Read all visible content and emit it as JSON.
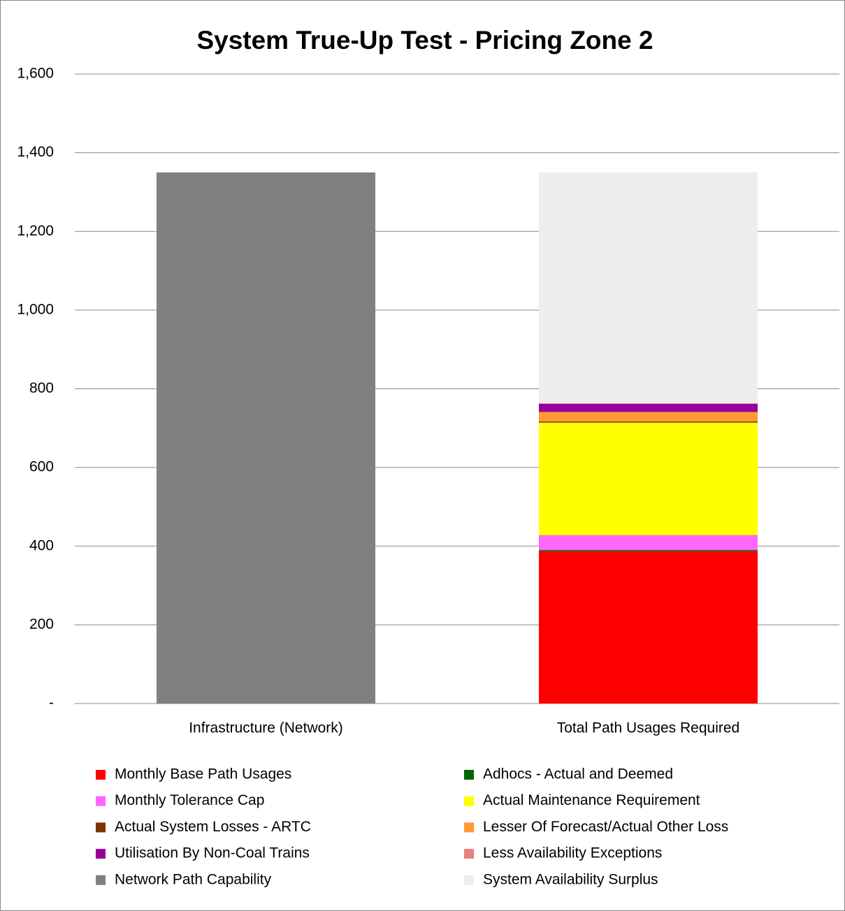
{
  "chart_data": {
    "type": "stacked_bar",
    "title": "System True-Up Test - Pricing Zone 2",
    "categories": [
      "Infrastructure (Network)",
      "Total Path Usages Required"
    ],
    "series": [
      {
        "name": "Monthly Base Path Usages",
        "color": "#ff0000",
        "values": [
          null,
          387
        ]
      },
      {
        "name": "Adhocs - Actual and Deemed",
        "color": "#006600",
        "values": [
          null,
          3
        ]
      },
      {
        "name": "Monthly Tolerance Cap",
        "color": "#ff66ff",
        "values": [
          null,
          38
        ]
      },
      {
        "name": "Actual Maintenance Requirement",
        "color": "#ffff00",
        "values": [
          null,
          286
        ]
      },
      {
        "name": "Actual System Losses - ARTC",
        "color": "#7f3300",
        "values": [
          null,
          3
        ]
      },
      {
        "name": "Lesser Of Forecast/Actual Other Loss",
        "color": "#ff9933",
        "values": [
          null,
          24
        ]
      },
      {
        "name": "Utilisation By Non-Coal Trains",
        "color": "#990099",
        "values": [
          null,
          21
        ]
      },
      {
        "name": "Less Availability Exceptions",
        "color": "#e68080",
        "values": [
          null,
          1
        ]
      },
      {
        "name": "Network Path Capability",
        "color": "#808080",
        "values": [
          1350,
          null
        ]
      },
      {
        "name": "System Availability Surplus",
        "color": "#eeeeee",
        "values": [
          null,
          587
        ]
      }
    ],
    "legend_order": [
      0,
      1,
      2,
      3,
      4,
      5,
      6,
      7,
      8,
      9
    ],
    "ylim": [
      0,
      1600
    ],
    "yticks": [
      {
        "value": 0,
        "label": "-"
      },
      200,
      400,
      600,
      800,
      {
        "value": 1000,
        "label": "1,000"
      },
      {
        "value": 1200,
        "label": "1,200"
      },
      {
        "value": 1400,
        "label": "1,400"
      },
      {
        "value": 1600,
        "label": "1,600"
      }
    ],
    "grid": true
  }
}
